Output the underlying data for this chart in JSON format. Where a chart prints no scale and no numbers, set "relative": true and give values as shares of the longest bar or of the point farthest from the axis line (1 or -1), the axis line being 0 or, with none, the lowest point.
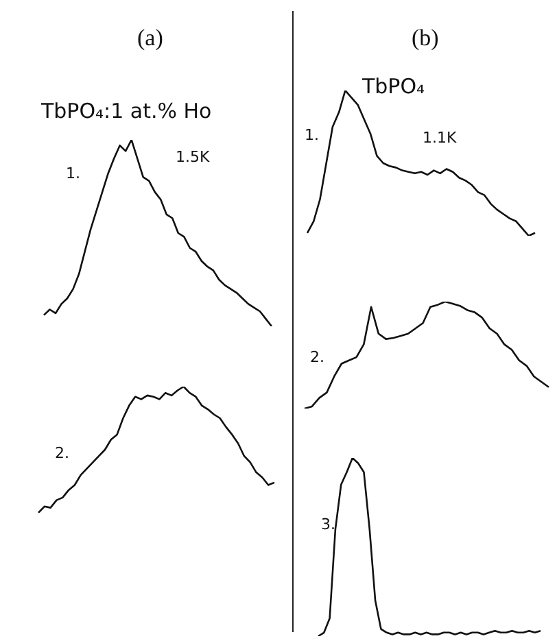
{
  "chart_data": [
    {
      "type": "line",
      "title": "(a)",
      "subtitle": "TbPO₄:1 at.% Ho",
      "annotations": [
        "1.",
        "1.5K"
      ],
      "relative": true,
      "categories": [
        null,
        null,
        null,
        null,
        null,
        null,
        null,
        null,
        null,
        null,
        null,
        null,
        null,
        null,
        null,
        null,
        null,
        null,
        null,
        null,
        null,
        null,
        null,
        null,
        null,
        null,
        null,
        null,
        null,
        null,
        null,
        null,
        null,
        null,
        null,
        null,
        null,
        null,
        null,
        null
      ],
      "series": [
        {
          "color": "#111111",
          "values": [
            0.06,
            0.09,
            0.07,
            0.12,
            0.15,
            0.2,
            0.28,
            0.4,
            0.52,
            0.62,
            0.72,
            0.82,
            0.9,
            0.97,
            0.94,
            1,
            0.9,
            0.8,
            0.78,
            0.72,
            0.68,
            0.6,
            0.58,
            0.5,
            0.48,
            0.42,
            0.4,
            0.35,
            0.32,
            0.3,
            0.25,
            0.22,
            0.2,
            0.18,
            0.15,
            0.12,
            0.1,
            0.08,
            0.04,
            0
          ]
        }
      ]
    },
    {
      "type": "line",
      "annotations": [
        "2."
      ],
      "relative": true,
      "categories": [
        null,
        null,
        null,
        null,
        null,
        null,
        null,
        null,
        null,
        null,
        null,
        null,
        null,
        null,
        null,
        null,
        null,
        null,
        null,
        null,
        null,
        null,
        null,
        null,
        null,
        null,
        null,
        null,
        null,
        null,
        null,
        null,
        null,
        null,
        null,
        null,
        null,
        null,
        null,
        null
      ],
      "series": [
        {
          "color": "#111111",
          "values": [
            0,
            0.05,
            0.04,
            0.1,
            0.12,
            0.18,
            0.22,
            0.3,
            0.35,
            0.4,
            0.45,
            0.5,
            0.58,
            0.62,
            0.75,
            0.85,
            0.92,
            0.9,
            0.93,
            0.92,
            0.9,
            0.95,
            0.93,
            0.97,
            1,
            0.95,
            0.92,
            0.85,
            0.82,
            0.78,
            0.75,
            0.68,
            0.62,
            0.55,
            0.45,
            0.4,
            0.32,
            0.28,
            0.22,
            0.24
          ]
        }
      ]
    },
    {
      "type": "line",
      "title": "(b)",
      "subtitle": "TbPO₄",
      "annotations": [
        "1.",
        "1.1K"
      ],
      "relative": true,
      "categories": [
        null,
        null,
        null,
        null,
        null,
        null,
        null,
        null,
        null,
        null,
        null,
        null,
        null,
        null,
        null,
        null,
        null,
        null,
        null,
        null,
        null,
        null,
        null,
        null,
        null,
        null,
        null,
        null,
        null,
        null,
        null,
        null,
        null,
        null,
        null,
        null,
        null
      ],
      "series": [
        {
          "color": "#111111",
          "values": [
            0.02,
            0.1,
            0.25,
            0.5,
            0.75,
            0.85,
            1,
            0.95,
            0.9,
            0.8,
            0.7,
            0.55,
            0.5,
            0.48,
            0.47,
            0.45,
            0.44,
            0.43,
            0.44,
            0.42,
            0.45,
            0.43,
            0.46,
            0.44,
            0.4,
            0.38,
            0.35,
            0.3,
            0.28,
            0.22,
            0.18,
            0.15,
            0.12,
            0.1,
            0.05,
            0,
            0.02
          ]
        }
      ]
    },
    {
      "type": "line",
      "annotations": [
        "2."
      ],
      "relative": true,
      "categories": [
        null,
        null,
        null,
        null,
        null,
        null,
        null,
        null,
        null,
        null,
        null,
        null,
        null,
        null,
        null,
        null,
        null,
        null,
        null,
        null,
        null,
        null,
        null,
        null,
        null,
        null,
        null,
        null,
        null,
        null,
        null,
        null,
        null,
        null
      ],
      "series": [
        {
          "color": "#111111",
          "values": [
            0,
            0.02,
            0.1,
            0.15,
            0.3,
            0.42,
            0.45,
            0.48,
            0.6,
            0.95,
            0.7,
            0.65,
            0.66,
            0.68,
            0.7,
            0.75,
            0.8,
            0.95,
            0.97,
            1,
            0.98,
            0.96,
            0.92,
            0.9,
            0.85,
            0.75,
            0.7,
            0.6,
            0.55,
            0.45,
            0.4,
            0.3,
            0.25,
            0.2
          ]
        }
      ]
    },
    {
      "type": "line",
      "annotations": [
        "3."
      ],
      "relative": true,
      "categories": [
        null,
        null,
        null,
        null,
        null,
        null,
        null,
        null,
        null,
        null,
        null,
        null,
        null,
        null,
        null,
        null,
        null,
        null,
        null,
        null,
        null,
        null,
        null,
        null,
        null,
        null,
        null,
        null,
        null,
        null,
        null,
        null,
        null,
        null,
        null,
        null,
        null,
        null,
        null,
        null
      ],
      "series": [
        {
          "color": "#111111",
          "values": [
            0,
            0.02,
            0.1,
            0.6,
            0.85,
            0.92,
            1,
            0.97,
            0.92,
            0.6,
            0.2,
            0.04,
            0.02,
            0.01,
            0.02,
            0.01,
            0.01,
            0.02,
            0.01,
            0.02,
            0.01,
            0.01,
            0.02,
            0.02,
            0.01,
            0.02,
            0.01,
            0.02,
            0.02,
            0.01,
            0.02,
            0.03,
            0.02,
            0.02,
            0.03,
            0.02,
            0.02,
            0.03,
            0.02,
            0.03
          ]
        }
      ]
    }
  ]
}
